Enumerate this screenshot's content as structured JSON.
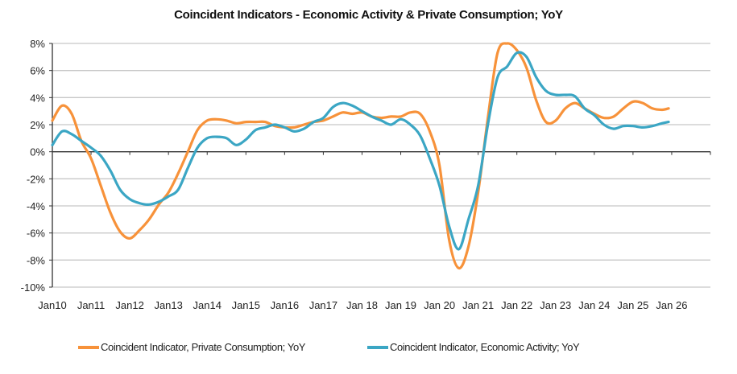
{
  "chart_data": {
    "type": "line",
    "title": "Coincident Indicators - Economic Activity & Private Consumption; YoY",
    "xlabel": "",
    "ylabel": "",
    "ylim": [
      -10,
      8
    ],
    "yticks": [
      8,
      6,
      4,
      2,
      0,
      -2,
      -4,
      -6,
      -8,
      -10
    ],
    "ytick_labels": [
      "8%",
      "6%",
      "4%",
      "2%",
      "0%",
      "-2%",
      "-4%",
      "-6%",
      "-8%",
      "-10%"
    ],
    "xlim": [
      2010.0,
      2027.0
    ],
    "xticks": [
      2010,
      2011,
      2012,
      2013,
      2014,
      2015,
      2016,
      2017,
      2018,
      2019,
      2020,
      2021,
      2022,
      2023,
      2024,
      2025,
      2026
    ],
    "xtick_labels": [
      "Jan10",
      "Jan11",
      "Jan12",
      "Jan13",
      "Jan14",
      "Jan15",
      "Jan16",
      "Jan17",
      "Jan 18",
      "Jan 19",
      "Jan 20",
      "Jan 21",
      "Jan 22",
      "Jan 23",
      "Jan 24",
      "Jan 25",
      "Jan 26"
    ],
    "grid": true,
    "legend_position": "bottom",
    "x": [
      2010.0,
      2010.25,
      2010.5,
      2010.75,
      2011.0,
      2011.25,
      2011.5,
      2011.75,
      2012.0,
      2012.25,
      2012.5,
      2012.75,
      2013.0,
      2013.25,
      2013.5,
      2013.75,
      2014.0,
      2014.25,
      2014.5,
      2014.75,
      2015.0,
      2015.25,
      2015.5,
      2015.75,
      2016.0,
      2016.25,
      2016.5,
      2016.75,
      2017.0,
      2017.25,
      2017.5,
      2017.75,
      2018.0,
      2018.25,
      2018.5,
      2018.75,
      2019.0,
      2019.25,
      2019.5,
      2019.75,
      2020.0,
      2020.25,
      2020.5,
      2020.75,
      2021.0,
      2021.25,
      2021.5,
      2021.75,
      2022.0,
      2022.25,
      2022.5,
      2022.75,
      2023.0,
      2023.25,
      2023.5,
      2023.75,
      2024.0,
      2024.25,
      2024.5,
      2024.75,
      2025.0,
      2025.25,
      2025.5,
      2025.75,
      2025.92
    ],
    "series": [
      {
        "name": "Coincident Indicator, Private Consumption; YoY",
        "color": "#F7923A",
        "values": [
          2.3,
          3.4,
          2.8,
          0.8,
          -0.5,
          -2.5,
          -4.5,
          -5.9,
          -6.4,
          -5.8,
          -5.0,
          -3.9,
          -3.0,
          -1.6,
          0.0,
          1.6,
          2.3,
          2.4,
          2.3,
          2.1,
          2.2,
          2.2,
          2.2,
          1.9,
          1.8,
          1.8,
          2.0,
          2.2,
          2.3,
          2.6,
          2.9,
          2.8,
          2.9,
          2.6,
          2.5,
          2.6,
          2.6,
          2.9,
          2.8,
          1.5,
          -1.0,
          -6.5,
          -8.6,
          -7.0,
          -3.0,
          2.5,
          7.3,
          8.0,
          7.5,
          6.2,
          3.8,
          2.2,
          2.3,
          3.2,
          3.6,
          3.2,
          2.8,
          2.5,
          2.6,
          3.2,
          3.7,
          3.6,
          3.2,
          3.1,
          3.2
        ]
      },
      {
        "name": "Coincident Indicator, Economic Activity; YoY",
        "color": "#3BA6C4",
        "values": [
          0.5,
          1.5,
          1.3,
          0.8,
          0.3,
          -0.3,
          -1.4,
          -2.8,
          -3.5,
          -3.8,
          -3.9,
          -3.7,
          -3.3,
          -2.8,
          -1.2,
          0.3,
          1.0,
          1.1,
          1.0,
          0.5,
          0.9,
          1.6,
          1.8,
          2.0,
          1.8,
          1.5,
          1.7,
          2.2,
          2.5,
          3.3,
          3.6,
          3.4,
          3.0,
          2.6,
          2.3,
          2.0,
          2.4,
          2.0,
          1.2,
          -0.5,
          -2.5,
          -5.5,
          -7.2,
          -5.0,
          -2.5,
          2.0,
          5.5,
          6.3,
          7.3,
          7.0,
          5.5,
          4.5,
          4.2,
          4.2,
          4.1,
          3.2,
          2.7,
          2.0,
          1.7,
          1.9,
          1.9,
          1.8,
          1.9,
          2.1,
          2.2
        ]
      }
    ]
  }
}
